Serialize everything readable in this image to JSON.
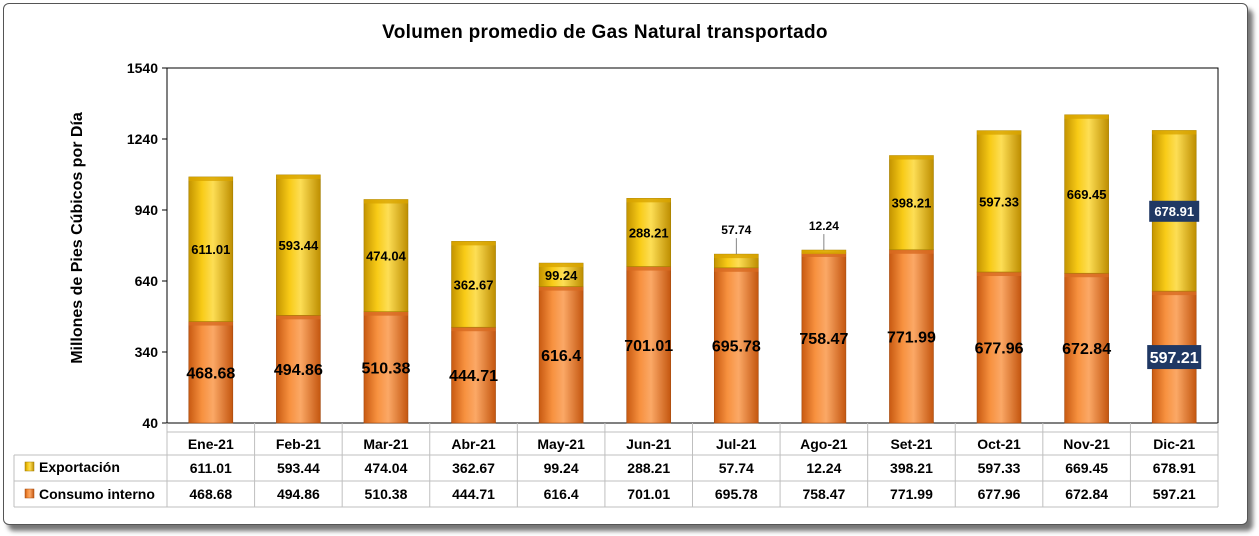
{
  "chart_data": {
    "type": "bar",
    "stacked": true,
    "title": "Volumen promedio de Gas Natural transportado",
    "ylabel": "Millones de Pies Cúbicos por Día",
    "xlabel": "",
    "ylim": [
      40,
      1540
    ],
    "yticks": [
      40,
      340,
      640,
      940,
      1240,
      1540
    ],
    "categories": [
      "Ene-21",
      "Feb-21",
      "Mar-21",
      "Abr-21",
      "May-21",
      "Jun-21",
      "Jul-21",
      "Ago-21",
      "Set-21",
      "Oct-21",
      "Nov-21",
      "Dic-21"
    ],
    "series": [
      {
        "name": "Consumo interno",
        "color": "#F28532",
        "labels": [
          "468.68",
          "494.86",
          "510.38",
          "444.71",
          "616.4",
          "701.01",
          "695.78",
          "758.47",
          "771.99",
          "677.96",
          "672.84",
          "597.21"
        ],
        "values": [
          468.68,
          494.86,
          510.38,
          444.71,
          616.4,
          701.01,
          695.78,
          758.47,
          771.99,
          677.96,
          672.84,
          597.21
        ]
      },
      {
        "name": "Exportación",
        "color": "#F7C400",
        "labels": [
          "611.01",
          "593.44",
          "474.04",
          "362.67",
          "99.24",
          "288.21",
          "57.74",
          "12.24",
          "398.21",
          "597.33",
          "669.45",
          "678.91"
        ],
        "values": [
          611.01,
          593.44,
          474.04,
          362.67,
          99.24,
          288.21,
          57.74,
          12.24,
          398.21,
          597.33,
          669.45,
          678.91
        ]
      }
    ],
    "highlight_color": "#1F3864",
    "grid": false,
    "legend": "data-table-left"
  }
}
